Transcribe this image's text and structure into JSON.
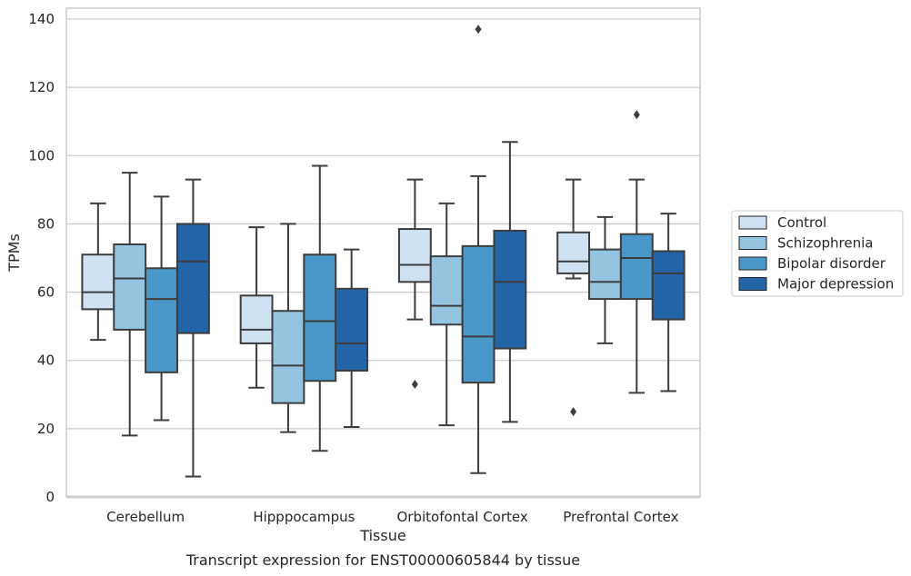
{
  "chart_data": {
    "type": "box",
    "title": "",
    "caption": "Transcript expression for ENST00000605844 by tissue",
    "xlabel": "Tissue",
    "ylabel": "TPMs",
    "ylim": [
      0,
      140
    ],
    "yticks": [
      0,
      20,
      40,
      60,
      80,
      100,
      120,
      140
    ],
    "grid": "horizontal",
    "legend_position": "right",
    "categories": [
      "Cerebellum",
      "Hipppocampus",
      "Orbitofontal Cortex",
      "Prefrontal Cortex"
    ],
    "series": [
      {
        "name": "Control",
        "color": "#d0e1f2",
        "boxes": [
          {
            "min": 46,
            "q1": 55,
            "median": 60,
            "q3": 71,
            "max": 86,
            "outliers": []
          },
          {
            "min": 32,
            "q1": 45,
            "median": 49,
            "q3": 59,
            "max": 79,
            "outliers": []
          },
          {
            "min": 52,
            "q1": 63,
            "median": 68,
            "q3": 78.5,
            "max": 93,
            "outliers": [
              33
            ]
          },
          {
            "min": 64,
            "q1": 65.5,
            "median": 69,
            "q3": 77.5,
            "max": 93,
            "outliers": [
              25
            ]
          }
        ]
      },
      {
        "name": "Schizophrenia",
        "color": "#94c4df",
        "boxes": [
          {
            "min": 18,
            "q1": 49,
            "median": 64,
            "q3": 74,
            "max": 95,
            "outliers": []
          },
          {
            "min": 19,
            "q1": 27.5,
            "median": 38.5,
            "q3": 54.5,
            "max": 80,
            "outliers": []
          },
          {
            "min": 21,
            "q1": 50.5,
            "median": 56,
            "q3": 70.5,
            "max": 86,
            "outliers": []
          },
          {
            "min": 45,
            "q1": 58,
            "median": 63,
            "q3": 72.5,
            "max": 82,
            "outliers": []
          }
        ]
      },
      {
        "name": "Bipolar disorder",
        "color": "#4a98c9",
        "boxes": [
          {
            "min": 22.5,
            "q1": 36.5,
            "median": 58,
            "q3": 67,
            "max": 88,
            "outliers": []
          },
          {
            "min": 13.5,
            "q1": 34,
            "median": 51.5,
            "q3": 71,
            "max": 97,
            "outliers": []
          },
          {
            "min": 7,
            "q1": 33.5,
            "median": 47,
            "q3": 73.5,
            "max": 94,
            "outliers": [
              137
            ]
          },
          {
            "min": 30.5,
            "q1": 58,
            "median": 70,
            "q3": 77,
            "max": 93,
            "outliers": [
              112
            ]
          }
        ]
      },
      {
        "name": "Major depression",
        "color": "#2465a8",
        "boxes": [
          {
            "min": 6,
            "q1": 48,
            "median": 69,
            "q3": 80,
            "max": 93,
            "outliers": []
          },
          {
            "min": 20.5,
            "q1": 37,
            "median": 45,
            "q3": 61,
            "max": 72.5,
            "outliers": []
          },
          {
            "min": 22,
            "q1": 43.5,
            "median": 63,
            "q3": 78,
            "max": 104,
            "outliers": []
          },
          {
            "min": 31,
            "q1": 52,
            "median": 65.5,
            "q3": 72,
            "max": 83,
            "outliers": []
          }
        ]
      }
    ]
  }
}
